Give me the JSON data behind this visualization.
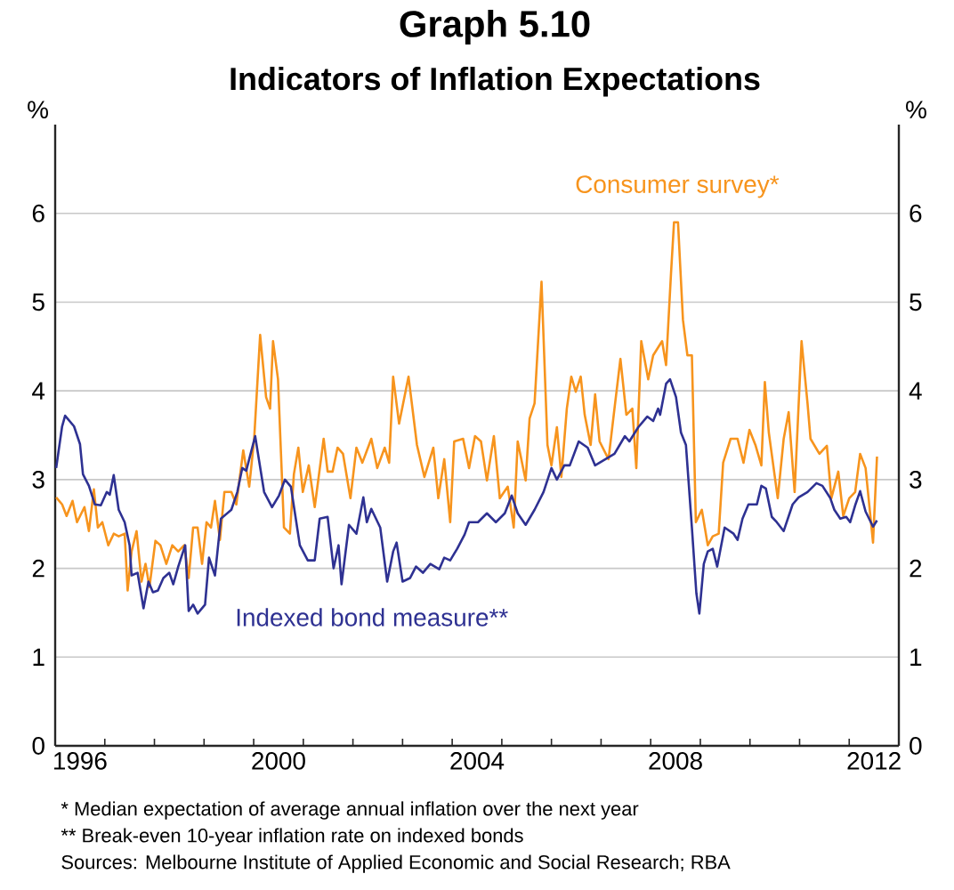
{
  "chart_data": {
    "type": "line",
    "title": "Graph 5.10",
    "subtitle": "Indicators of Inflation Expectations",
    "ylabel": "%",
    "y2label": "%",
    "xlim": [
      1996,
      2013
    ],
    "ylim": [
      0,
      7
    ],
    "y2lim": [
      0,
      7
    ],
    "xticks": [
      {
        "value": 1996.5,
        "label": "1996"
      },
      {
        "value": 2000.5,
        "label": "2000"
      },
      {
        "value": 2004.5,
        "label": "2004"
      },
      {
        "value": 2008.5,
        "label": "2008"
      },
      {
        "value": 2012.5,
        "label": "2012"
      },
      {
        "value": 1997,
        "label": null
      },
      {
        "value": 1998,
        "label": null
      },
      {
        "value": 1999,
        "label": null
      },
      {
        "value": 2000,
        "label": null
      },
      {
        "value": 2001,
        "label": null
      },
      {
        "value": 2002,
        "label": null
      },
      {
        "value": 2003,
        "label": null
      },
      {
        "value": 2004,
        "label": null
      },
      {
        "value": 2005,
        "label": null
      },
      {
        "value": 2006,
        "label": null
      },
      {
        "value": 2007,
        "label": null
      },
      {
        "value": 2008,
        "label": null
      },
      {
        "value": 2009,
        "label": null
      },
      {
        "value": 2010,
        "label": null
      },
      {
        "value": 2011,
        "label": null
      },
      {
        "value": 2012,
        "label": null
      }
    ],
    "yticks": [
      0,
      1,
      2,
      3,
      4,
      5,
      6
    ],
    "y2ticks": [
      0,
      1,
      2,
      3,
      4,
      5,
      6
    ],
    "grid": "y",
    "legend": false,
    "marker": "none",
    "line_style": "solid",
    "series": [
      {
        "name": "Consumer survey*",
        "color": "#f7941d",
        "x": [
          1996.02,
          1996.14,
          1996.23,
          1996.35,
          1996.44,
          1996.59,
          1996.68,
          1996.78,
          1996.86,
          1996.95,
          1997.07,
          1997.18,
          1997.28,
          1997.4,
          1997.46,
          1997.54,
          1997.64,
          1997.74,
          1997.82,
          1997.9,
          1998.02,
          1998.12,
          1998.24,
          1998.36,
          1998.48,
          1998.6,
          1998.69,
          1998.78,
          1998.87,
          1998.96,
          1999.05,
          1999.14,
          1999.22,
          1999.32,
          1999.41,
          1999.55,
          1999.65,
          1999.79,
          1999.91,
          2000.01,
          2000.13,
          2000.25,
          2000.33,
          2000.39,
          2000.49,
          2000.61,
          2000.73,
          2000.81,
          2000.9,
          2000.99,
          2001.11,
          2001.23,
          2001.41,
          2001.49,
          2001.59,
          2001.69,
          2001.8,
          2001.95,
          2002.07,
          2002.19,
          2002.37,
          2002.49,
          2002.64,
          2002.73,
          2002.81,
          2002.93,
          2003.12,
          2003.29,
          2003.44,
          2003.62,
          2003.72,
          2003.84,
          2003.96,
          2004.04,
          2004.22,
          2004.34,
          2004.46,
          2004.58,
          2004.7,
          2004.84,
          2004.96,
          2005.12,
          2005.24,
          2005.32,
          2005.48,
          2005.56,
          2005.66,
          2005.8,
          2005.92,
          2006.0,
          2006.11,
          2006.2,
          2006.31,
          2006.4,
          2006.49,
          2006.59,
          2006.67,
          2006.79,
          2006.88,
          2006.97,
          2007.15,
          2007.27,
          2007.39,
          2007.51,
          2007.63,
          2007.71,
          2007.81,
          2007.95,
          2008.05,
          2008.23,
          2008.31,
          2008.41,
          2008.47,
          2008.55,
          2008.65,
          2008.74,
          2008.83,
          2008.91,
          2009.03,
          2009.15,
          2009.25,
          2009.37,
          2009.46,
          2009.61,
          2009.75,
          2009.87,
          2009.99,
          2010.11,
          2010.23,
          2010.3,
          2010.38,
          2010.56,
          2010.68,
          2010.78,
          2010.9,
          2011.04,
          2011.16,
          2011.22,
          2011.4,
          2011.55,
          2011.64,
          2011.78,
          2011.88,
          2012.0,
          2012.12,
          2012.22,
          2012.33,
          2012.48,
          2012.56
        ],
        "values": [
          2.8,
          2.72,
          2.59,
          2.76,
          2.52,
          2.69,
          2.42,
          2.89,
          2.46,
          2.52,
          2.26,
          2.39,
          2.36,
          2.39,
          1.75,
          2.19,
          2.42,
          1.85,
          2.05,
          1.79,
          2.31,
          2.26,
          2.05,
          2.26,
          2.19,
          2.26,
          1.89,
          2.46,
          2.46,
          2.05,
          2.52,
          2.46,
          2.76,
          2.32,
          2.86,
          2.86,
          2.72,
          3.33,
          2.92,
          3.46,
          4.63,
          3.93,
          3.8,
          4.56,
          4.13,
          2.46,
          2.39,
          3.06,
          3.36,
          2.86,
          3.16,
          2.69,
          3.46,
          3.09,
          3.09,
          3.36,
          3.29,
          2.79,
          3.36,
          3.19,
          3.46,
          3.13,
          3.36,
          3.19,
          4.16,
          3.63,
          4.16,
          3.39,
          3.03,
          3.36,
          2.79,
          3.23,
          2.52,
          3.43,
          3.46,
          3.13,
          3.49,
          3.43,
          2.99,
          3.49,
          2.79,
          2.92,
          2.46,
          3.43,
          2.99,
          3.69,
          3.86,
          5.23,
          3.39,
          3.16,
          3.59,
          3.03,
          3.8,
          4.16,
          3.99,
          4.16,
          3.73,
          3.39,
          3.96,
          3.43,
          3.23,
          3.8,
          4.36,
          3.73,
          3.8,
          3.13,
          4.56,
          4.13,
          4.4,
          4.56,
          4.29,
          5.33,
          5.9,
          5.9,
          4.8,
          4.4,
          4.4,
          2.52,
          2.66,
          2.26,
          2.36,
          2.39,
          3.19,
          3.46,
          3.46,
          3.19,
          3.56,
          3.39,
          3.16,
          4.1,
          3.53,
          2.79,
          3.46,
          3.76,
          2.86,
          4.56,
          3.86,
          3.46,
          3.29,
          3.38,
          2.79,
          3.09,
          2.59,
          2.79,
          2.86,
          3.29,
          3.13,
          2.29,
          3.26
        ]
      },
      {
        "name": "Indexed bond measure**",
        "color": "#2e3192",
        "x": [
          1996.02,
          1996.14,
          1996.2,
          1996.38,
          1996.5,
          1996.56,
          1996.68,
          1996.8,
          1996.92,
          1997.04,
          1997.1,
          1997.18,
          1997.28,
          1997.4,
          1997.5,
          1997.54,
          1997.66,
          1997.78,
          1997.88,
          1997.97,
          1998.07,
          1998.18,
          1998.3,
          1998.38,
          1998.48,
          1998.62,
          1998.69,
          1998.78,
          1998.87,
          1999.02,
          1999.1,
          1999.22,
          1999.34,
          1999.55,
          1999.67,
          1999.77,
          1999.85,
          2000.03,
          2000.21,
          2000.37,
          2000.51,
          2000.63,
          2000.75,
          2000.84,
          2000.93,
          2001.09,
          2001.23,
          2001.33,
          2001.49,
          2001.61,
          2001.71,
          2001.77,
          2001.92,
          2002.07,
          2002.21,
          2002.28,
          2002.37,
          2002.55,
          2002.69,
          2002.81,
          2002.88,
          2003.0,
          2003.15,
          2003.27,
          2003.41,
          2003.56,
          2003.74,
          2003.84,
          2003.96,
          2004.1,
          2004.25,
          2004.34,
          2004.52,
          2004.7,
          2004.88,
          2005.06,
          2005.2,
          2005.32,
          2005.48,
          2005.66,
          2005.84,
          2006.0,
          2006.11,
          2006.26,
          2006.37,
          2006.55,
          2006.73,
          2006.88,
          2007.09,
          2007.27,
          2007.48,
          2007.57,
          2007.75,
          2007.93,
          2008.05,
          2008.15,
          2008.19,
          2008.31,
          2008.39,
          2008.51,
          2008.61,
          2008.71,
          2008.83,
          2008.92,
          2008.98,
          2009.07,
          2009.15,
          2009.25,
          2009.34,
          2009.49,
          2009.67,
          2009.75,
          2009.85,
          2009.97,
          2010.14,
          2010.23,
          2010.32,
          2010.44,
          2010.54,
          2010.68,
          2010.86,
          2010.98,
          2011.16,
          2011.34,
          2011.46,
          2011.62,
          2011.7,
          2011.82,
          2011.94,
          2012.02,
          2012.12,
          2012.22,
          2012.33,
          2012.48,
          2012.56
        ],
        "values": [
          3.13,
          3.6,
          3.72,
          3.6,
          3.4,
          3.06,
          2.93,
          2.72,
          2.71,
          2.86,
          2.83,
          3.05,
          2.66,
          2.52,
          2.26,
          1.92,
          1.95,
          1.55,
          1.85,
          1.73,
          1.75,
          1.89,
          1.95,
          1.82,
          2.02,
          2.26,
          1.52,
          1.59,
          1.49,
          1.59,
          2.12,
          1.92,
          2.56,
          2.66,
          2.86,
          3.13,
          3.1,
          3.49,
          2.86,
          2.69,
          2.82,
          3.0,
          2.92,
          2.59,
          2.26,
          2.09,
          2.09,
          2.56,
          2.58,
          2.0,
          2.26,
          1.82,
          2.49,
          2.39,
          2.8,
          2.52,
          2.67,
          2.46,
          1.85,
          2.19,
          2.29,
          1.85,
          1.89,
          2.02,
          1.95,
          2.05,
          1.99,
          2.12,
          2.09,
          2.22,
          2.38,
          2.52,
          2.52,
          2.62,
          2.52,
          2.62,
          2.82,
          2.62,
          2.49,
          2.66,
          2.86,
          3.13,
          3.0,
          3.16,
          3.16,
          3.43,
          3.36,
          3.16,
          3.23,
          3.29,
          3.49,
          3.43,
          3.59,
          3.71,
          3.66,
          3.8,
          3.73,
          4.08,
          4.13,
          3.93,
          3.53,
          3.39,
          2.46,
          1.72,
          1.49,
          2.05,
          2.19,
          2.22,
          2.02,
          2.46,
          2.39,
          2.32,
          2.56,
          2.72,
          2.72,
          2.93,
          2.9,
          2.58,
          2.52,
          2.42,
          2.72,
          2.8,
          2.86,
          2.96,
          2.93,
          2.79,
          2.66,
          2.56,
          2.58,
          2.52,
          2.71,
          2.87,
          2.64,
          2.47,
          2.54
        ]
      }
    ],
    "annotations": [
      "* Median expectation of average annual inflation over the next year",
      "** Break-even 10-year inflation rate on indexed bonds",
      "Sources: Melbourne Institute of Applied Economic and Social Research; RBA"
    ]
  }
}
